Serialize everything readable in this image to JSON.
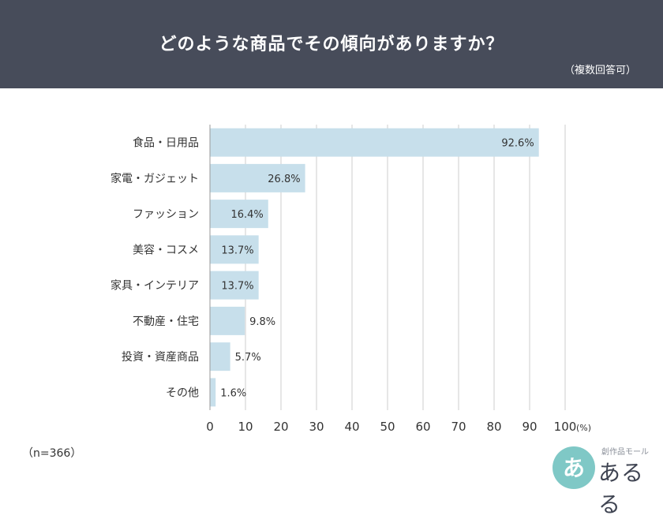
{
  "header": {
    "title": "どのような商品でその傾向がありますか？",
    "note": "（複数回答可）"
  },
  "sample_size": "（n=366）",
  "logo": {
    "mark": "あ",
    "subtitle": "創作品モール",
    "name": "あるる"
  },
  "colors": {
    "header_bg": "#474c5a",
    "bar": "#c7dfeb",
    "grid": "#cccccc",
    "text": "#333333"
  },
  "chart_data": {
    "type": "bar",
    "orientation": "horizontal",
    "title": "どのような商品でその傾向がありますか？",
    "categories": [
      "食品・日用品",
      "家電・ガジェット",
      "ファッション",
      "美容・コスメ",
      "家具・インテリア",
      "不動産・住宅",
      "投資・資産商品",
      "その他"
    ],
    "values": [
      92.6,
      26.8,
      16.4,
      13.7,
      13.7,
      9.8,
      5.7,
      1.6
    ],
    "value_labels": [
      "92.6%",
      "26.8%",
      "16.4%",
      "13.7%",
      "13.7%",
      "9.8%",
      "5.7%",
      "1.6%"
    ],
    "x_ticks": [
      "0",
      "10",
      "20",
      "30",
      "40",
      "50",
      "60",
      "70",
      "80",
      "90",
      "100"
    ],
    "x_unit": "(%)",
    "xlim": [
      0,
      100
    ],
    "grid": true
  }
}
